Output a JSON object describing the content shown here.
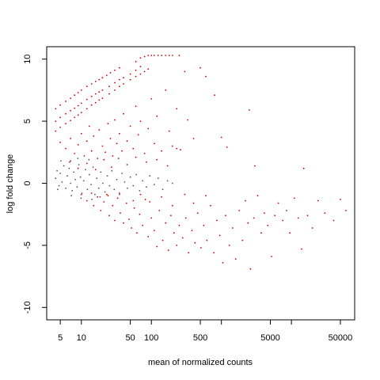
{
  "chart_data": {
    "type": "scatter",
    "title": "",
    "xlabel": "mean of normalized counts",
    "ylabel": "log fold change",
    "x_scale": "log",
    "xlim": [
      3.2,
      80000
    ],
    "ylim": [
      -11,
      11
    ],
    "x_ticks": [
      5,
      10,
      50,
      100,
      500,
      1000,
      5000,
      10000,
      50000
    ],
    "x_tick_labels": [
      "5",
      "10",
      "50",
      "100",
      "500",
      "",
      "5000",
      "",
      "50000"
    ],
    "y_ticks": [
      -10,
      -5,
      0,
      5,
      10
    ],
    "y_tick_labels": [
      "-10",
      "-5",
      "0",
      "5",
      "10"
    ],
    "grid": false,
    "legend": "none",
    "colors": {
      "significant": "#cc0000",
      "not_significant": "#555555"
    },
    "series": [
      {
        "color": "#cc0000",
        "points": [
          [
            4.3,
            6.0
          ],
          [
            5,
            6.3
          ],
          [
            6,
            6.6
          ],
          [
            7,
            6.85
          ],
          [
            8,
            7.1
          ],
          [
            9,
            7.3
          ],
          [
            10,
            7.5
          ],
          [
            12,
            7.8
          ],
          [
            14,
            8.0
          ],
          [
            16,
            8.2
          ],
          [
            18,
            8.35
          ],
          [
            20,
            8.5
          ],
          [
            23,
            8.7
          ],
          [
            26,
            8.9
          ],
          [
            30,
            9.1
          ],
          [
            35,
            9.3
          ],
          [
            4.3,
            5.0
          ],
          [
            5,
            5.3
          ],
          [
            6,
            5.6
          ],
          [
            7,
            5.85
          ],
          [
            8,
            6.05
          ],
          [
            9,
            6.25
          ],
          [
            10,
            6.45
          ],
          [
            12,
            6.75
          ],
          [
            14,
            7.0
          ],
          [
            16,
            7.2
          ],
          [
            18,
            7.35
          ],
          [
            20,
            7.5
          ],
          [
            25,
            7.8
          ],
          [
            30,
            8.1
          ],
          [
            35,
            8.35
          ],
          [
            40,
            8.5
          ],
          [
            50,
            8.8
          ],
          [
            60,
            9.1
          ],
          [
            70,
            9.4
          ],
          [
            4.3,
            4.2
          ],
          [
            5,
            4.5
          ],
          [
            6,
            4.8
          ],
          [
            7,
            5.05
          ],
          [
            8,
            5.3
          ],
          [
            9,
            5.5
          ],
          [
            10,
            5.7
          ],
          [
            12,
            6.0
          ],
          [
            14,
            6.3
          ],
          [
            16,
            6.5
          ],
          [
            18,
            6.7
          ],
          [
            20,
            6.85
          ],
          [
            25,
            7.2
          ],
          [
            30,
            7.5
          ],
          [
            35,
            7.8
          ],
          [
            40,
            8.0
          ],
          [
            50,
            8.35
          ],
          [
            60,
            8.6
          ],
          [
            70,
            8.8
          ],
          [
            80,
            9.0
          ],
          [
            90,
            9.2
          ],
          [
            60,
            9.8
          ],
          [
            70,
            10.1
          ],
          [
            80,
            10.2
          ],
          [
            90,
            10.3
          ],
          [
            100,
            10.3
          ],
          [
            110,
            10.3
          ],
          [
            125,
            10.3
          ],
          [
            140,
            10.3
          ],
          [
            160,
            10.3
          ],
          [
            180,
            10.3
          ],
          [
            200,
            10.3
          ],
          [
            250,
            10.3
          ],
          [
            5,
            3.3
          ],
          [
            6,
            2.8
          ],
          [
            7,
            3.6
          ],
          [
            8,
            2.4
          ],
          [
            9,
            3.1
          ],
          [
            10,
            4.0
          ],
          [
            11,
            2.2
          ],
          [
            12,
            3.4
          ],
          [
            13,
            4.6
          ],
          [
            14,
            2.6
          ],
          [
            15,
            3.8
          ],
          [
            17,
            2.0
          ],
          [
            18,
            4.3
          ],
          [
            20,
            3.0
          ],
          [
            22,
            2.5
          ],
          [
            24,
            4.8
          ],
          [
            26,
            3.6
          ],
          [
            28,
            2.2
          ],
          [
            30,
            5.1
          ],
          [
            32,
            3.2
          ],
          [
            35,
            4.0
          ],
          [
            38,
            2.6
          ],
          [
            40,
            5.6
          ],
          [
            45,
            3.4
          ],
          [
            50,
            4.6
          ],
          [
            55,
            2.8
          ],
          [
            60,
            6.2
          ],
          [
            65,
            3.9
          ],
          [
            70,
            5.0
          ],
          [
            80,
            2.4
          ],
          [
            90,
            4.4
          ],
          [
            100,
            6.8
          ],
          [
            110,
            3.2
          ],
          [
            120,
            5.4
          ],
          [
            140,
            2.6
          ],
          [
            160,
            7.5
          ],
          [
            180,
            4.2
          ],
          [
            200,
            3.0
          ],
          [
            230,
            6.0
          ],
          [
            260,
            2.7
          ],
          [
            300,
            9.0
          ],
          [
            330,
            5.1
          ],
          [
            400,
            3.6
          ],
          [
            500,
            9.3
          ],
          [
            600,
            8.6
          ],
          [
            800,
            7.1
          ],
          [
            1000,
            3.7
          ],
          [
            1200,
            2.9
          ],
          [
            2500,
            5.9
          ],
          [
            3000,
            1.4
          ],
          [
            15000,
            1.2
          ],
          [
            7,
            1.8
          ],
          [
            9,
            1.2
          ],
          [
            12,
            1.6
          ],
          [
            16,
            1.1
          ],
          [
            21,
            1.9
          ],
          [
            27,
            1.3
          ],
          [
            34,
            2.0
          ],
          [
            45,
            1.5
          ],
          [
            60,
            2.1
          ],
          [
            85,
            1.7
          ],
          [
            120,
            1.9
          ],
          [
            170,
            1.4
          ],
          [
            230,
            2.8
          ],
          [
            10,
            -0.9
          ],
          [
            12,
            -1.4
          ],
          [
            14,
            -0.8
          ],
          [
            15,
            -1.8
          ],
          [
            17,
            -1.1
          ],
          [
            19,
            -2.2
          ],
          [
            21,
            -1.5
          ],
          [
            23,
            -0.9
          ],
          [
            25,
            -2.6
          ],
          [
            28,
            -1.8
          ],
          [
            30,
            -3.0
          ],
          [
            33,
            -1.2
          ],
          [
            36,
            -2.4
          ],
          [
            40,
            -3.2
          ],
          [
            44,
            -1.6
          ],
          [
            48,
            -2.9
          ],
          [
            52,
            -3.6
          ],
          [
            57,
            -2.0
          ],
          [
            62,
            -4.0
          ],
          [
            68,
            -2.5
          ],
          [
            75,
            -3.4
          ],
          [
            82,
            -1.3
          ],
          [
            90,
            -4.3
          ],
          [
            100,
            -2.8
          ],
          [
            110,
            -3.8
          ],
          [
            120,
            -5.1
          ],
          [
            130,
            -2.2
          ],
          [
            145,
            -4.6
          ],
          [
            160,
            -3.2
          ],
          [
            175,
            -5.4
          ],
          [
            190,
            -2.6
          ],
          [
            210,
            -4.0
          ],
          [
            230,
            -5.0
          ],
          [
            250,
            -3.4
          ],
          [
            280,
            -4.4
          ],
          [
            310,
            -2.8
          ],
          [
            340,
            -5.6
          ],
          [
            380,
            -3.8
          ],
          [
            420,
            -4.8
          ],
          [
            460,
            -2.4
          ],
          [
            510,
            -5.2
          ],
          [
            560,
            -3.4
          ],
          [
            620,
            -4.6
          ],
          [
            700,
            -1.8
          ],
          [
            780,
            -5.6
          ],
          [
            860,
            -3.0
          ],
          [
            950,
            -4.2
          ],
          [
            1050,
            -6.4
          ],
          [
            1150,
            -2.6
          ],
          [
            1300,
            -5.0
          ],
          [
            1450,
            -3.6
          ],
          [
            1600,
            -6.1
          ],
          [
            1800,
            -2.2
          ],
          [
            2000,
            -4.6
          ],
          [
            2200,
            -1.4
          ],
          [
            2400,
            -3.2
          ],
          [
            2600,
            -6.9
          ],
          [
            2900,
            -2.8
          ],
          [
            3300,
            -1.0
          ],
          [
            3700,
            -4.0
          ],
          [
            4100,
            -2.4
          ],
          [
            4600,
            -3.4
          ],
          [
            5200,
            -5.9
          ],
          [
            5800,
            -2.6
          ],
          [
            6500,
            -1.6
          ],
          [
            7500,
            -3.0
          ],
          [
            8500,
            -2.2
          ],
          [
            9500,
            -4.0
          ],
          [
            11000,
            -1.2
          ],
          [
            12500,
            -2.8
          ],
          [
            14000,
            -5.3
          ],
          [
            17000,
            -2.6
          ],
          [
            20000,
            -3.6
          ],
          [
            24000,
            -1.4
          ],
          [
            30000,
            -2.4
          ],
          [
            40000,
            -3.0
          ],
          [
            50000,
            -1.3
          ],
          [
            60000,
            -2.2
          ],
          [
            24,
            -1.0
          ],
          [
            35,
            -0.8
          ],
          [
            55,
            -1.4
          ],
          [
            70,
            -0.9
          ],
          [
            95,
            -1.5
          ],
          [
            140,
            -1.1
          ],
          [
            200,
            -1.8
          ],
          [
            300,
            -0.9
          ],
          [
            400,
            -1.6
          ],
          [
            600,
            -1.0
          ]
        ]
      },
      {
        "color": "#555555",
        "points": [
          [
            4.3,
            0.4
          ],
          [
            4.5,
            1.0
          ],
          [
            4.8,
            -0.2
          ],
          [
            5,
            0.8
          ],
          [
            5.3,
            0.1
          ],
          [
            5.6,
            1.4
          ],
          [
            6,
            -0.4
          ],
          [
            6.3,
            0.6
          ],
          [
            6.7,
            1.2
          ],
          [
            7,
            0.0
          ],
          [
            7.4,
            -0.6
          ],
          [
            7.8,
            0.9
          ],
          [
            8.2,
            0.3
          ],
          [
            8.7,
            -0.3
          ],
          [
            9.2,
            1.5
          ],
          [
            9.7,
            0.5
          ],
          [
            10.2,
            -0.8
          ],
          [
            10.8,
            0.2
          ],
          [
            11.5,
            1.1
          ],
          [
            12.2,
            -0.5
          ],
          [
            13,
            0.7
          ],
          [
            13.8,
            -0.1
          ],
          [
            14.7,
            1.3
          ],
          [
            15.6,
            -0.9
          ],
          [
            16.6,
            0.4
          ],
          [
            17.7,
            -0.4
          ],
          [
            19,
            0.9
          ],
          [
            20.3,
            0.0
          ],
          [
            21.8,
            -0.7
          ],
          [
            23.5,
            0.6
          ],
          [
            25.3,
            -0.2
          ],
          [
            27.3,
            1.0
          ],
          [
            29.5,
            -0.5
          ],
          [
            32,
            0.3
          ],
          [
            35,
            -0.9
          ],
          [
            38,
            0.8
          ],
          [
            41.5,
            0.1
          ],
          [
            45.5,
            -0.4
          ],
          [
            50,
            0.5
          ],
          [
            55,
            -0.2
          ],
          [
            61,
            0.7
          ],
          [
            68,
            -0.6
          ],
          [
            75,
            0.2
          ],
          [
            85,
            -0.3
          ],
          [
            95,
            0.6
          ],
          [
            110,
            -0.1
          ],
          [
            125,
            0.4
          ],
          [
            145,
            -0.5
          ],
          [
            170,
            0.2
          ],
          [
            200,
            0.0
          ],
          [
            5.1,
            1.8
          ],
          [
            6.8,
            1.7
          ],
          [
            8.9,
            2.0
          ],
          [
            12.8,
            1.9
          ],
          [
            4.6,
            -0.5
          ],
          [
            7.2,
            -1.0
          ],
          [
            9.9,
            -1.2
          ],
          [
            14.2,
            -1.3
          ],
          [
            18.5,
            -1.1
          ]
        ]
      }
    ]
  }
}
